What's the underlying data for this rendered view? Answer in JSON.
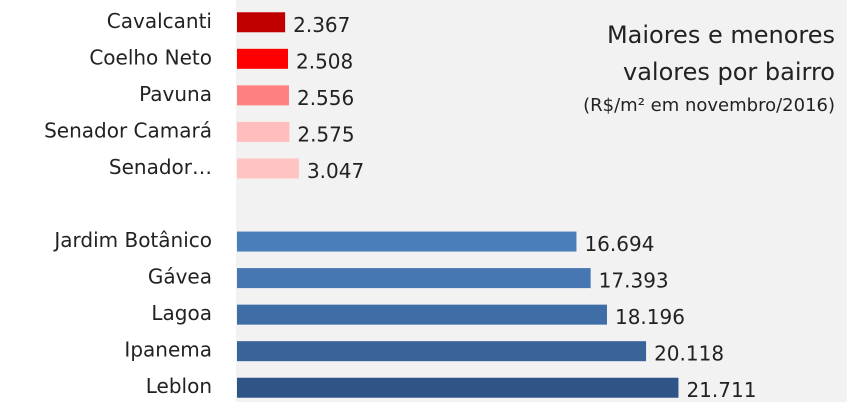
{
  "chart_data": {
    "type": "bar",
    "orientation": "horizontal",
    "title": [
      "Maiores e menores",
      "valores por bairro"
    ],
    "subtitle": "(R$/m² em novembro/2016)",
    "categories": [
      "Cavalcanti",
      "Coelho Neto",
      "Pavuna",
      "Senador Camará",
      "Senador…",
      null,
      "Jardim Botânico",
      "Gávea",
      "Lagoa",
      "Ipanema",
      "Leblon"
    ],
    "values": [
      2367,
      2508,
      2556,
      2575,
      3047,
      null,
      16694,
      17393,
      18196,
      20118,
      21711
    ],
    "value_labels": [
      "2.367",
      "2.508",
      "2.556",
      "2.575",
      "3.047",
      null,
      "16.694",
      "17.393",
      "18.196",
      "20.118",
      "21.711"
    ],
    "colors": [
      "#c00000",
      "#ff0000",
      "#ff8080",
      "#ffbdbd",
      "#ffc3c3",
      null,
      "#4a7ebb",
      "#4677b3",
      "#3f6ea6",
      "#3a6399",
      "#2e5586"
    ],
    "xlim": [
      0,
      30000
    ]
  }
}
